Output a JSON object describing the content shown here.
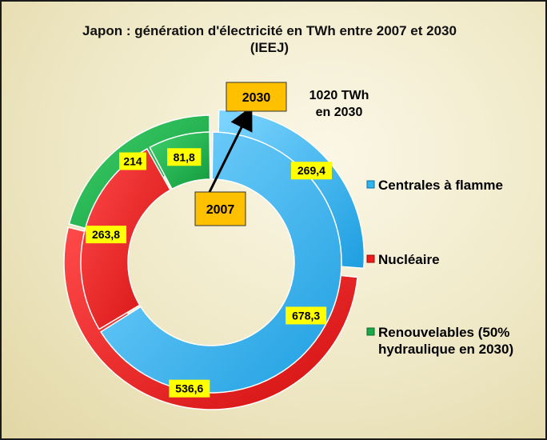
{
  "chart_data": {
    "type": "doughnut",
    "title": "Japon : génération d'électricité en TWh entre 2007 et 2030",
    "subtitle": "(IEEJ)",
    "categories": [
      "Centrales à flamme",
      "Nucléaire",
      "Renouvelables (50% hydraulique en 2030)"
    ],
    "colors": [
      "#2eb5ee",
      "#ee1c1c",
      "#19a94a"
    ],
    "series": [
      {
        "name": "2007",
        "values": [
          678.3,
          263.8,
          81.8
        ]
      },
      {
        "name": "2030",
        "values": [
          269.4,
          536.6,
          214
        ]
      }
    ],
    "value_labels": {
      "2007": [
        "678,3",
        "263,8",
        "81,8"
      ],
      "2030": [
        "269,4",
        "536,6",
        "214"
      ]
    },
    "annotation": [
      "1020 TWh",
      "en 2030"
    ],
    "legend_position": "right"
  }
}
